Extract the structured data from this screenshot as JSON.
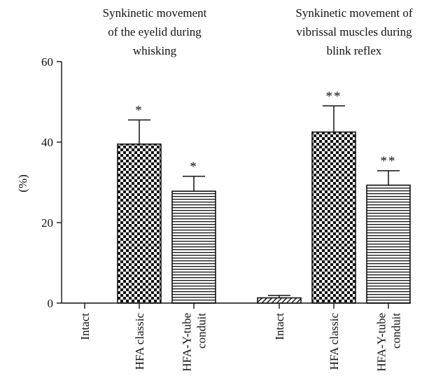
{
  "chart_data": [
    {
      "type": "bar",
      "title_lines": [
        "Synkinetic movement",
        "of the eyelid during",
        "whisking"
      ],
      "ylabel": "(%)",
      "ylim": [
        0,
        60
      ],
      "yticks": [
        0,
        20,
        40,
        60
      ],
      "categories": [
        {
          "lines": [
            "Intact"
          ]
        },
        {
          "lines": [
            "HFA classic"
          ]
        },
        {
          "lines": [
            "HFA-Y-tube",
            "conduit"
          ]
        }
      ],
      "values": [
        0,
        39.5,
        27.8
      ],
      "errors": [
        0,
        6.0,
        3.7
      ],
      "patterns": [
        "hatch",
        "checker",
        "hstripes"
      ],
      "significance": [
        "",
        "*",
        "*"
      ]
    },
    {
      "type": "bar",
      "title_lines": [
        "Synkinetic movement of",
        "vibrissal muscles during",
        "blink reflex"
      ],
      "ylabel": "(%)",
      "ylim": [
        0,
        60
      ],
      "categories": [
        {
          "lines": [
            "Intact"
          ]
        },
        {
          "lines": [
            "HFA classic"
          ]
        },
        {
          "lines": [
            "HFA-Y-tube",
            "conduit"
          ]
        }
      ],
      "values": [
        1.3,
        42.5,
        29.3
      ],
      "errors": [
        0.6,
        6.5,
        3.6
      ],
      "patterns": [
        "hatch",
        "checker",
        "hstripes"
      ],
      "significance": [
        "",
        "**",
        "**"
      ]
    }
  ]
}
